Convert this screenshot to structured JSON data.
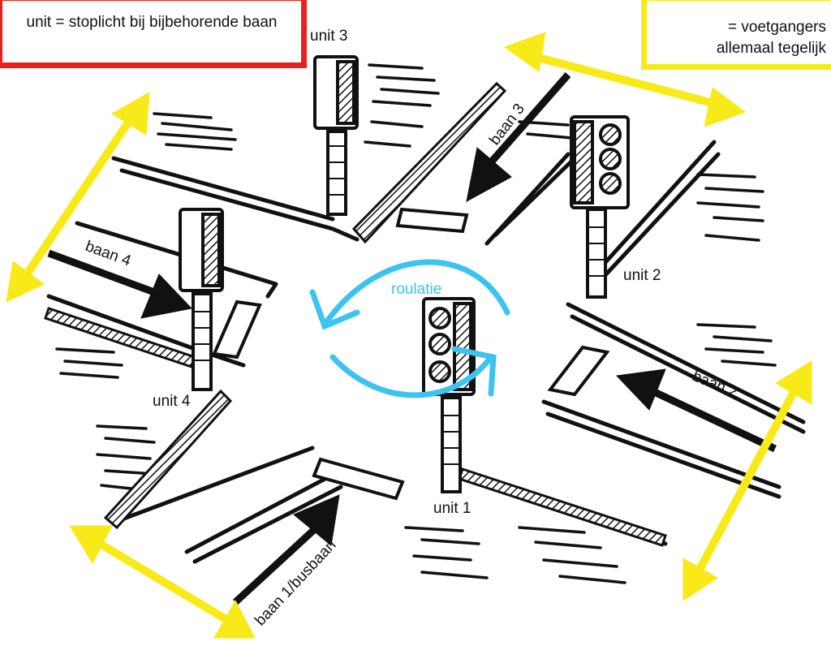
{
  "legend": {
    "unit_text": "unit = stoplicht bij bijbehorende baan",
    "pedestrian_text": "= voetgangers allemaal tegelijk"
  },
  "units": {
    "unit1": "unit 1",
    "unit2": "unit 2",
    "unit3": "unit 3",
    "unit4": "unit 4"
  },
  "lanes": {
    "lane1": "baan 1/busbaan",
    "lane2": "baan 2",
    "lane3": "baan 3",
    "lane4": "baan 4"
  },
  "rotation_label": "roulatie",
  "colors": {
    "legend_unit_border": "#e8221b",
    "pedestrian_arrows": "#f7ea18",
    "rotation_arrows": "#3cc3ef",
    "ink": "#111111"
  }
}
